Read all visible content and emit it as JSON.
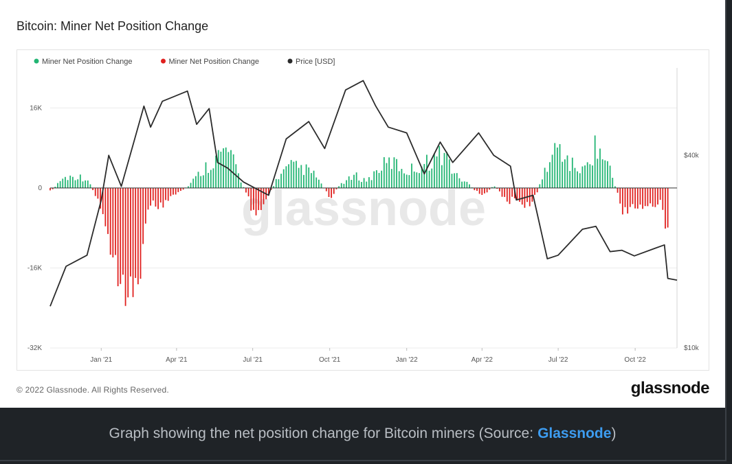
{
  "title": "Bitcoin: Miner Net Position Change",
  "footer": {
    "copyright": "© 2022 Glassnode. All Rights Reserved.",
    "logo": "glassnode"
  },
  "watermark": "glassnode",
  "caption": {
    "text": "Graph showing the net position change for Bitcoin miners (Source:",
    "link": "Glassnode",
    "suffix": ")"
  },
  "colors": {
    "positive": "#22b573",
    "negative": "#e0201e",
    "price": "#2b2b2b"
  },
  "chart_data": {
    "type": "bar",
    "title": "Bitcoin: Miner Net Position Change",
    "legend": [
      {
        "label": "Miner Net Position Change",
        "color": "#22b573"
      },
      {
        "label": "Miner Net Position Change",
        "color": "#e0201e"
      },
      {
        "label": "Price [USD]",
        "color": "#2b2b2b"
      }
    ],
    "legend_position": "top-left",
    "x_range": [
      "2020-11-01",
      "2022-11-20"
    ],
    "x_ticks": [
      "Jan '21",
      "Apr '21",
      "Jul '21",
      "Oct '21",
      "Jan '22",
      "Apr '22",
      "Jul '22",
      "Oct '22"
    ],
    "x_tick_dates": [
      "2021-01-01",
      "2021-04-01",
      "2021-07-01",
      "2021-10-01",
      "2022-01-01",
      "2022-04-01",
      "2022-07-01",
      "2022-10-01"
    ],
    "y_left": {
      "ticks": [
        "16K",
        "0",
        "-16K",
        "-32K"
      ],
      "tick_values": [
        16000,
        0,
        -16000,
        -32000
      ],
      "range": [
        -32000,
        24000
      ]
    },
    "y_right": {
      "ticks": [
        "$40k",
        "$10k"
      ],
      "tick_values": [
        40000,
        10000
      ],
      "scale": "log",
      "range": [
        10000,
        75000
      ]
    },
    "grid": true,
    "series": [
      {
        "name": "Miner Net Position Change",
        "kind": "bar",
        "points": [
          [
            "2020-11-01",
            -800
          ],
          [
            "2020-11-15",
            2000
          ],
          [
            "2020-12-01",
            2500
          ],
          [
            "2020-12-15",
            2000
          ],
          [
            "2021-01-01",
            -4000
          ],
          [
            "2021-01-15",
            -13000
          ],
          [
            "2021-02-01",
            -19000
          ],
          [
            "2021-02-10",
            -26000
          ],
          [
            "2021-02-20",
            -9000
          ],
          [
            "2021-03-01",
            -4000
          ],
          [
            "2021-03-15",
            -3500
          ],
          [
            "2021-04-01",
            -1500
          ],
          [
            "2021-04-15",
            500
          ],
          [
            "2021-05-01",
            3500
          ],
          [
            "2021-05-15",
            6000
          ],
          [
            "2021-06-01",
            8000
          ],
          [
            "2021-06-15",
            2500
          ],
          [
            "2021-07-01",
            -5000
          ],
          [
            "2021-07-15",
            -3000
          ],
          [
            "2021-08-01",
            2500
          ],
          [
            "2021-08-15",
            4500
          ],
          [
            "2021-09-01",
            4000
          ],
          [
            "2021-09-15",
            2500
          ],
          [
            "2021-10-01",
            -2000
          ],
          [
            "2021-10-15",
            1000
          ],
          [
            "2021-11-01",
            2500
          ],
          [
            "2021-11-15",
            1500
          ],
          [
            "2021-12-01",
            4500
          ],
          [
            "2021-12-15",
            5500
          ],
          [
            "2022-01-01",
            3500
          ],
          [
            "2022-01-15",
            4500
          ],
          [
            "2022-02-01",
            6000
          ],
          [
            "2022-02-15",
            7500
          ],
          [
            "2022-03-01",
            2500
          ],
          [
            "2022-03-15",
            1000
          ],
          [
            "2022-04-01",
            -2000
          ],
          [
            "2022-04-15",
            500
          ],
          [
            "2022-05-01",
            -2500
          ],
          [
            "2022-05-15",
            -3500
          ],
          [
            "2022-06-01",
            -3000
          ],
          [
            "2022-06-15",
            3500
          ],
          [
            "2022-07-01",
            9000
          ],
          [
            "2022-07-15",
            5000
          ],
          [
            "2022-08-01",
            3500
          ],
          [
            "2022-08-15",
            9000
          ],
          [
            "2022-09-01",
            4000
          ],
          [
            "2022-09-15",
            -4500
          ],
          [
            "2022-10-01",
            -4000
          ],
          [
            "2022-10-15",
            -3500
          ],
          [
            "2022-11-01",
            -3500
          ],
          [
            "2022-11-10",
            -11000
          ]
        ]
      },
      {
        "name": "Price [USD]",
        "kind": "line",
        "axis": "right",
        "points": [
          [
            "2020-11-01",
            13500
          ],
          [
            "2020-11-20",
            18000
          ],
          [
            "2020-12-15",
            19500
          ],
          [
            "2021-01-01",
            29000
          ],
          [
            "2021-01-10",
            40000
          ],
          [
            "2021-01-25",
            32000
          ],
          [
            "2021-02-10",
            45000
          ],
          [
            "2021-02-21",
            57000
          ],
          [
            "2021-03-01",
            49000
          ],
          [
            "2021-03-15",
            59000
          ],
          [
            "2021-04-14",
            63500
          ],
          [
            "2021-04-25",
            50000
          ],
          [
            "2021-05-10",
            56000
          ],
          [
            "2021-05-20",
            38000
          ],
          [
            "2021-06-01",
            36500
          ],
          [
            "2021-06-20",
            33000
          ],
          [
            "2021-07-20",
            30000
          ],
          [
            "2021-08-10",
            45000
          ],
          [
            "2021-09-06",
            51000
          ],
          [
            "2021-09-25",
            42000
          ],
          [
            "2021-10-20",
            64000
          ],
          [
            "2021-11-10",
            68500
          ],
          [
            "2021-11-25",
            57000
          ],
          [
            "2021-12-10",
            49000
          ],
          [
            "2022-01-01",
            47000
          ],
          [
            "2022-01-22",
            35000
          ],
          [
            "2022-02-10",
            44000
          ],
          [
            "2022-02-25",
            38000
          ],
          [
            "2022-03-28",
            47000
          ],
          [
            "2022-04-15",
            40000
          ],
          [
            "2022-05-05",
            37000
          ],
          [
            "2022-05-12",
            29000
          ],
          [
            "2022-06-01",
            30000
          ],
          [
            "2022-06-18",
            19000
          ],
          [
            "2022-07-01",
            19500
          ],
          [
            "2022-07-30",
            23500
          ],
          [
            "2022-08-15",
            24000
          ],
          [
            "2022-09-01",
            20000
          ],
          [
            "2022-09-15",
            20200
          ],
          [
            "2022-09-30",
            19400
          ],
          [
            "2022-10-25",
            20500
          ],
          [
            "2022-11-05",
            21000
          ],
          [
            "2022-11-09",
            16500
          ],
          [
            "2022-11-20",
            16300
          ]
        ]
      }
    ]
  }
}
